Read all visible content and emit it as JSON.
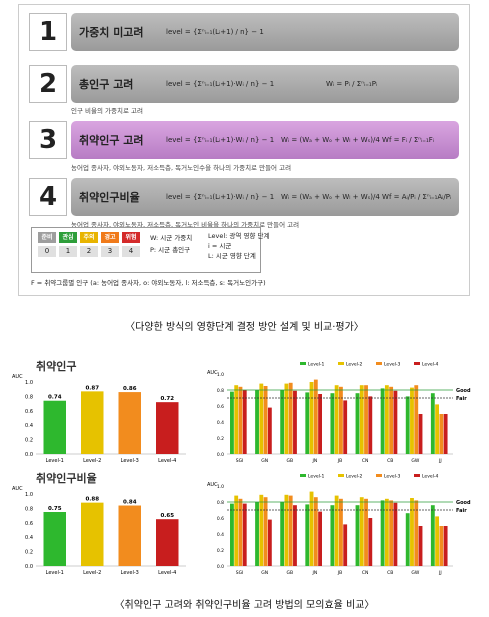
{
  "methods": [
    {
      "num": "1",
      "name": "가중치 미고려",
      "formula": "level = {Σⁿᵢ₌₁(Lᵢ+1) / n} − 1",
      "extra": "",
      "note": ""
    },
    {
      "num": "2",
      "name": "총인구 고려",
      "formula": "level = {Σⁿᵢ₌₁(Lᵢ+1)·Wᵢ / n} − 1",
      "extra": "Wᵢ = Pᵢ / Σⁿᵢ₌₁Pᵢ",
      "note": "인구 비율의 가중치로 고려"
    },
    {
      "num": "3",
      "name": "취약인구 고려",
      "formula": "level = {Σⁿᵢ₌₁(Lᵢ+1)·Wᵢ / n} − 1",
      "extra": "Wᵢ = (Wₐ + Wₒ + Wₗ + Wₛ)/4      Wf = Fᵢ / Σⁿᵢ₌₁Fᵢ",
      "note": "농어업 종사자, 야외노동자, 저소득층, 독거노인수을 하나의 가중치로 만들어 고려"
    },
    {
      "num": "4",
      "name": "취약인구비율",
      "formula": "level = {Σⁿᵢ₌₁(Lᵢ+1)·Wᵢ / n} − 1",
      "extra": "Wᵢ = (Wₐ + Wₒ + Wₗ + Wₛ)/4      Wf = Aᵢ/Pᵢ / Σⁿᵢ₌₁Aᵢ/Pᵢ",
      "note": "농어업 종사자, 야외노동자, 저소득층, 독거노인 비율을 하나의 가중치로 만들어 고려"
    }
  ],
  "legend": {
    "levels": [
      {
        "label": "준비",
        "num": "0",
        "color": "#9e9e9e"
      },
      {
        "label": "관심",
        "num": "1",
        "color": "#2e9e3a"
      },
      {
        "label": "주의",
        "num": "2",
        "color": "#e8b400"
      },
      {
        "label": "경고",
        "num": "3",
        "color": "#f07a1a"
      },
      {
        "label": "위험",
        "num": "4",
        "color": "#d42a2a"
      }
    ],
    "w_text": "W: 시군 가중치",
    "p_text": "P: 시군 총인구",
    "level_text": "Level: 광역 영향 단계",
    "i_text": "i = 시군",
    "l_text": "L: 시군 영향 단계",
    "f_text": "F = 취약그룹별 인구 (a: 농어업 종사자, o: 야외노동자, l: 저소득층, s: 독거노인가구)"
  },
  "caption1": "〈다양한 방식의 영향단계 결정 방안 설계 및 비교·평가〉",
  "caption2": "〈취약인구 고려와 취약인구비율 고려 방법의 모의효율 비교〉",
  "sections": [
    "취약인구",
    "취약인구비율"
  ],
  "colors": {
    "l1": "#2eb82e",
    "l2": "#e6c200",
    "l3": "#f28c1e",
    "l4": "#c81e1e"
  },
  "chart_data": [
    {
      "type": "bar",
      "title": "취약인구",
      "ylabel": "AUC",
      "ylim": [
        0,
        1.0
      ],
      "categories": [
        "Level-1",
        "Level-2",
        "Level-3",
        "Level-4"
      ],
      "values": [
        0.74,
        0.87,
        0.86,
        0.72
      ],
      "labels": [
        "0.74",
        "0.87",
        "0.86",
        "0.72"
      ]
    },
    {
      "type": "bar",
      "ylabel": "AUC",
      "ylim": [
        0,
        1.0
      ],
      "categories": [
        "SGI",
        "GN",
        "GB",
        "JN",
        "JB",
        "CN",
        "CB",
        "GW",
        "JJ"
      ],
      "series": [
        {
          "name": "Level-1",
          "values": [
            0.78,
            0.8,
            0.8,
            0.77,
            0.76,
            0.76,
            0.82,
            0.72,
            0.76
          ]
        },
        {
          "name": "Level-2",
          "values": [
            0.86,
            0.88,
            0.88,
            0.9,
            0.86,
            0.86,
            0.86,
            0.83,
            0.62
          ]
        },
        {
          "name": "Level-3",
          "values": [
            0.84,
            0.85,
            0.89,
            0.93,
            0.84,
            0.86,
            0.84,
            0.86,
            0.5
          ]
        },
        {
          "name": "Level-4",
          "values": [
            0.8,
            0.58,
            0.79,
            0.75,
            0.67,
            0.72,
            0.79,
            0.5,
            0.5
          ]
        }
      ],
      "reference_lines": [
        {
          "label": "Good",
          "y": 0.8
        },
        {
          "label": "Fair",
          "y": 0.7
        }
      ]
    },
    {
      "type": "bar",
      "title": "취약인구비율",
      "ylabel": "AUC",
      "ylim": [
        0,
        1.0
      ],
      "categories": [
        "Level-1",
        "Level-2",
        "Level-3",
        "Level-4"
      ],
      "values": [
        0.75,
        0.88,
        0.84,
        0.65
      ],
      "labels": [
        "0.75",
        "0.88",
        "0.84",
        "0.65"
      ]
    },
    {
      "type": "bar",
      "ylabel": "AUC",
      "ylim": [
        0,
        1.0
      ],
      "categories": [
        "SGI",
        "GN",
        "GB",
        "JN",
        "JB",
        "CN",
        "CB",
        "GW",
        "JJ"
      ],
      "series": [
        {
          "name": "Level-1",
          "values": [
            0.78,
            0.8,
            0.8,
            0.77,
            0.76,
            0.76,
            0.82,
            0.66,
            0.76
          ]
        },
        {
          "name": "Level-2",
          "values": [
            0.88,
            0.89,
            0.89,
            0.93,
            0.88,
            0.86,
            0.84,
            0.85,
            0.62
          ]
        },
        {
          "name": "Level-3",
          "values": [
            0.84,
            0.86,
            0.88,
            0.86,
            0.84,
            0.84,
            0.82,
            0.82,
            0.5
          ]
        },
        {
          "name": "Level-4",
          "values": [
            0.78,
            0.58,
            0.76,
            0.68,
            0.52,
            0.6,
            0.79,
            0.5,
            0.5
          ]
        }
      ],
      "reference_lines": [
        {
          "label": "Good",
          "y": 0.8
        },
        {
          "label": "Fair",
          "y": 0.7
        }
      ]
    }
  ]
}
